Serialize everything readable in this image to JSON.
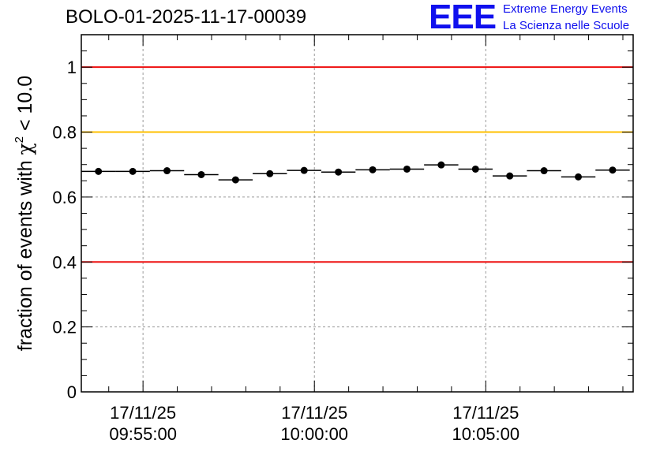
{
  "header": {
    "run_id": "BOLO-01-2025-11-17-00039",
    "logo_mark": "EEE",
    "logo_line1": "Extreme Energy Events",
    "logo_line2": "La Scienza nelle Scuole"
  },
  "chart_data": {
    "type": "scatter",
    "title": "BOLO-01-2025-11-17-00039",
    "xlabel": "",
    "ylabel_main": "fraction of events with ",
    "ylabel_symbol": "χ",
    "ylabel_sup": "2",
    "ylabel_tail": " < 10.0",
    "ylim": [
      0,
      1.1
    ],
    "xlim_minutes": [
      -1.8,
      14.3
    ],
    "yticks": [
      {
        "value": 0,
        "label": "0"
      },
      {
        "value": 0.2,
        "label": "0.2"
      },
      {
        "value": 0.4,
        "label": "0.4"
      },
      {
        "value": 0.6,
        "label": "0.6"
      },
      {
        "value": 0.8,
        "label": "0.8"
      },
      {
        "value": 1.0,
        "label": "1"
      }
    ],
    "xticks": [
      {
        "minute": 0,
        "date": "17/11/25",
        "time": "09:55:00"
      },
      {
        "minute": 5,
        "date": "17/11/25",
        "time": "10:00:00"
      },
      {
        "minute": 10,
        "date": "17/11/25",
        "time": "10:05:00"
      }
    ],
    "reference_lines": [
      {
        "value": 1.0,
        "color": "#ee1111"
      },
      {
        "value": 0.8,
        "color": "#ffc000"
      },
      {
        "value": 0.4,
        "color": "#ee1111"
      }
    ],
    "series": [
      {
        "name": "fraction",
        "color": "#000000",
        "bin_width_minutes": 1.0,
        "x_minutes": [
          -1.3,
          -0.3,
          0.7,
          1.7,
          2.7,
          3.7,
          4.7,
          5.7,
          6.7,
          7.7,
          8.7,
          9.7,
          10.7,
          11.7,
          12.7,
          13.7
        ],
        "values": [
          0.679,
          0.679,
          0.681,
          0.669,
          0.653,
          0.672,
          0.682,
          0.677,
          0.684,
          0.686,
          0.699,
          0.686,
          0.665,
          0.681,
          0.662,
          0.683
        ]
      }
    ]
  }
}
